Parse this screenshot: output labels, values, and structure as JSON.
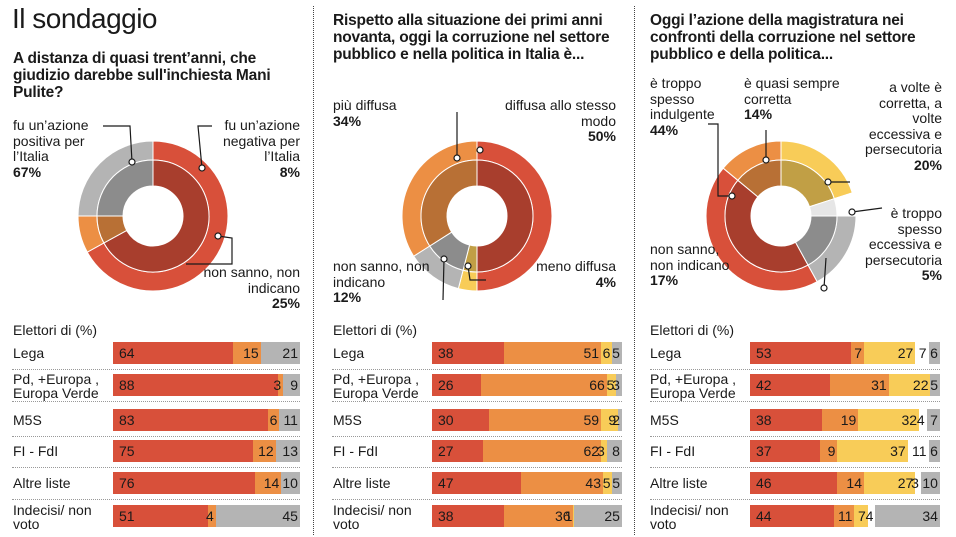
{
  "title": "Il sondaggio",
  "colors": {
    "red": "#d8503a",
    "orange": "#ec8f44",
    "yellow": "#f8cc58",
    "gray": "#b4b4b4",
    "white": "#ffffff"
  },
  "rows_heading": "Elettori di (%)",
  "chart_data": [
    {
      "type": "pie",
      "title": "A distanza di quasi trent’anni, che giudizio darebbe sull'inchiesta Mani Pulite?",
      "slices": [
        {
          "label": "fu un’azione positiva per l’Italia",
          "value": 67,
          "pct": "67%",
          "color": "red"
        },
        {
          "label": "fu un’azione negativa per l’Italia",
          "value": 8,
          "pct": "8%",
          "color": "orange"
        },
        {
          "label": "non sanno, non indicano",
          "value": 25,
          "pct": "25%",
          "color": "gray"
        }
      ],
      "rows": [
        {
          "label": "Lega",
          "values": [
            64,
            15,
            21
          ]
        },
        {
          "label": "Pd, +Europa , Europa Verde",
          "values": [
            88,
            3,
            9
          ]
        },
        {
          "label": "M5S",
          "values": [
            83,
            6,
            11
          ]
        },
        {
          "label": "FI - FdI",
          "values": [
            75,
            12,
            13
          ]
        },
        {
          "label": "Altre liste",
          "values": [
            76,
            14,
            10
          ]
        },
        {
          "label": "Indecisi/ non voto",
          "values": [
            51,
            4,
            45
          ]
        }
      ]
    },
    {
      "type": "pie",
      "title": "Rispetto alla situazione dei primi anni novanta, oggi la corruzione nel settore pubblico e nella politica in Italia è...",
      "slices": [
        {
          "label": "diffusa allo stesso modo",
          "value": 50,
          "pct": "50%",
          "color": "red"
        },
        {
          "label": "meno diffusa",
          "value": 4,
          "pct": "4%",
          "color": "yellow"
        },
        {
          "label": "non sanno, non indicano",
          "value": 12,
          "pct": "12%",
          "color": "gray"
        },
        {
          "label": "più diffusa",
          "value": 34,
          "pct": "34%",
          "color": "orange"
        }
      ],
      "rows": [
        {
          "label": "Lega",
          "values": [
            38,
            51,
            6,
            5
          ]
        },
        {
          "label": "Pd, +Europa , Europa Verde",
          "values": [
            26,
            66,
            5,
            3
          ]
        },
        {
          "label": "M5S",
          "values": [
            30,
            59,
            9,
            2
          ]
        },
        {
          "label": "FI - FdI",
          "values": [
            27,
            62,
            3,
            8
          ]
        },
        {
          "label": "Altre liste",
          "values": [
            47,
            43,
            5,
            5
          ]
        },
        {
          "label": "Indecisi/ non voto",
          "values": [
            38,
            36,
            1,
            25
          ]
        }
      ]
    },
    {
      "type": "pie",
      "title": "Oggi l’azione della magistratura nei confronti della corruzione nel settore pubblico e della politica...",
      "slices": [
        {
          "label": "a volte è corretta, a volte eccessiva e persecutoria",
          "value": 20,
          "pct": "20%",
          "color": "yellow"
        },
        {
          "label": "è troppo spesso eccessiva e persecutoria",
          "value": 5,
          "pct": "5%",
          "color": "white"
        },
        {
          "label": "non sanno, non indicano",
          "value": 17,
          "pct": "17%",
          "color": "gray"
        },
        {
          "label": "è troppo spesso indulgente",
          "value": 44,
          "pct": "44%",
          "color": "red"
        },
        {
          "label": "è quasi sempre corretta",
          "value": 14,
          "pct": "14%",
          "color": "orange"
        }
      ],
      "rows": [
        {
          "label": "Lega",
          "values": [
            53,
            7,
            27,
            7,
            6
          ]
        },
        {
          "label": "Pd, +Europa , Europa Verde",
          "values": [
            42,
            31,
            22,
            0,
            5
          ]
        },
        {
          "label": "M5S",
          "values": [
            38,
            19,
            32,
            4,
            7
          ]
        },
        {
          "label": "FI - FdI",
          "values": [
            37,
            9,
            37,
            11,
            6
          ]
        },
        {
          "label": "Altre liste",
          "values": [
            46,
            14,
            27,
            3,
            10
          ]
        },
        {
          "label": "Indecisi/ non voto",
          "values": [
            44,
            11,
            7,
            4,
            34
          ]
        }
      ]
    }
  ]
}
